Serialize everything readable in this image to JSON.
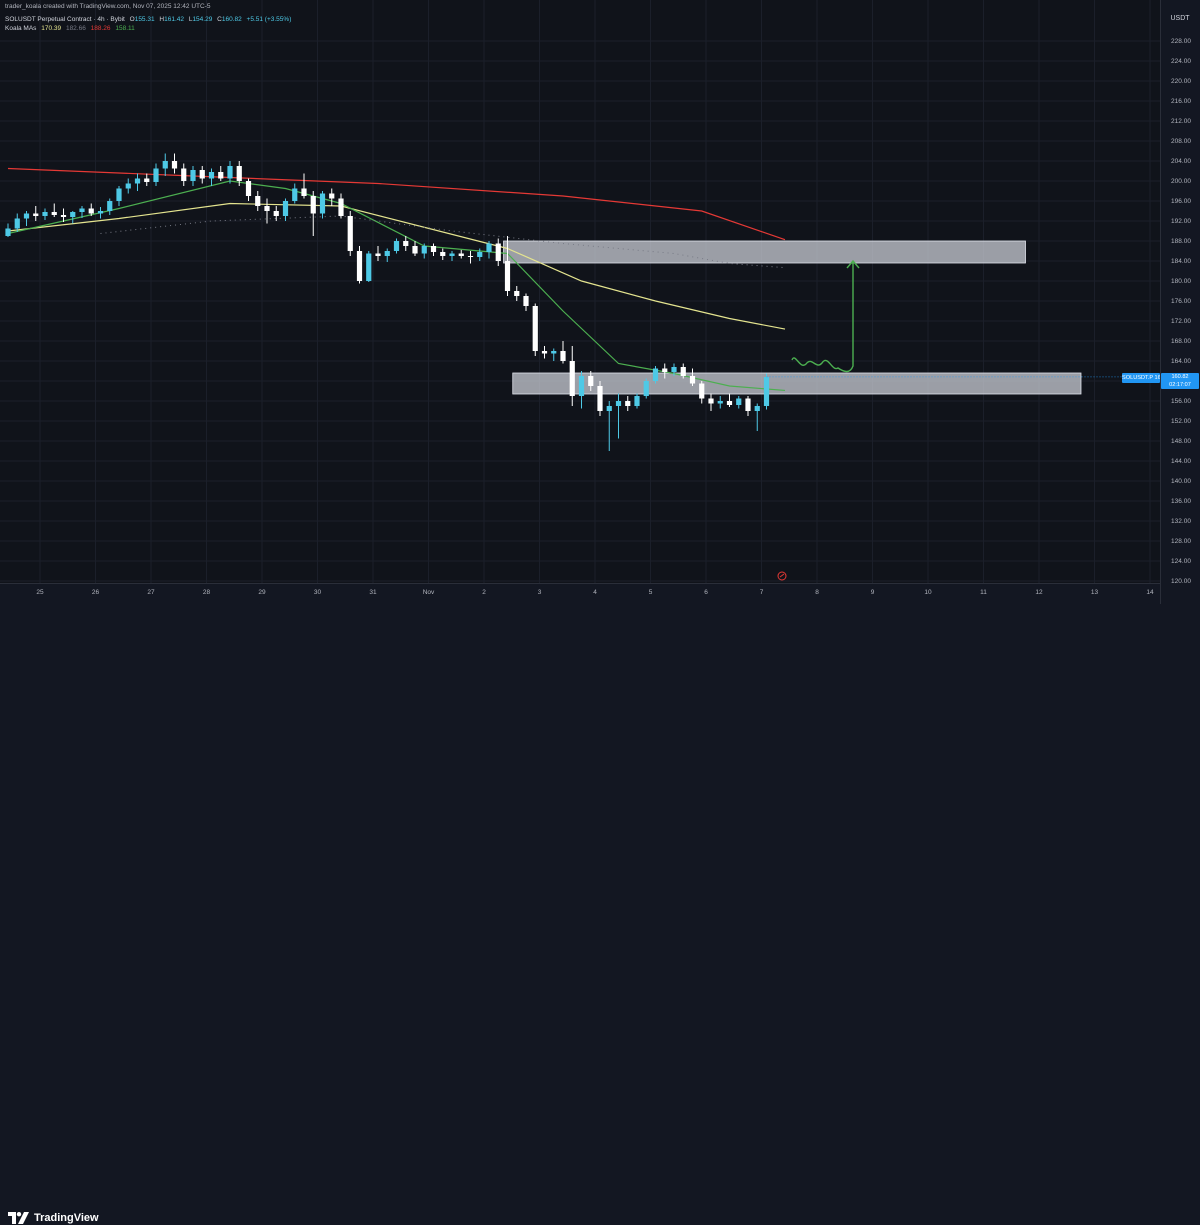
{
  "header": {
    "credit": "trader_koala created with TradingView.com, Nov 07, 2025 12:42 UTC-5",
    "symbol_line": "SOLUSDT Perpetual Contract · 4h · Bybit",
    "ohlc": {
      "o_label": "O",
      "o": "155.31",
      "h_label": "H",
      "h": "161.42",
      "l_label": "L",
      "l": "154.29",
      "c_label": "C",
      "c": "160.82",
      "change": "+5.51 (+3.55%)"
    },
    "ma_label": "Koala MAs",
    "ma_values": [
      "170.39",
      "182.66",
      "188.26",
      "158.11"
    ],
    "ma_colors": [
      "#e4e48f",
      "#787b86",
      "#e53935",
      "#4caf50"
    ]
  },
  "price_axis": {
    "currency": "USDT",
    "ticks": [
      "228.00",
      "224.00",
      "220.00",
      "216.00",
      "212.00",
      "208.00",
      "204.00",
      "200.00",
      "196.00",
      "192.00",
      "188.00",
      "184.00",
      "180.00",
      "176.00",
      "172.00",
      "168.00",
      "164.00",
      "160.00",
      "156.00",
      "152.00",
      "148.00",
      "144.00",
      "140.00",
      "136.00",
      "132.00",
      "128.00",
      "124.00",
      "120.00"
    ],
    "last_symbol": "SOLUSDT.P",
    "last_price": "160.82",
    "countdown": "02:17:07",
    "last_color": "#2196f3"
  },
  "time_axis": {
    "ticks": [
      "25",
      "26",
      "27",
      "28",
      "29",
      "30",
      "31",
      "Nov",
      "2",
      "3",
      "4",
      "5",
      "6",
      "7",
      "8",
      "9",
      "10",
      "11",
      "12",
      "13",
      "14"
    ]
  },
  "footer": {
    "brand": "TradingView"
  },
  "chart_data": {
    "type": "candlestick",
    "timeframe": "4h",
    "ylim": [
      118,
      232
    ],
    "x_start_day": "Oct 24",
    "candles_per_day": 6,
    "up_color": "#4ec9e6",
    "down_color": "#ffffff",
    "candles": [
      [
        189.0,
        191.5,
        188.8,
        190.5
      ],
      [
        190.5,
        193.5,
        189.8,
        192.5
      ],
      [
        192.5,
        194.0,
        191.0,
        193.5
      ],
      [
        193.5,
        195.0,
        192.0,
        193.0
      ],
      [
        193.0,
        194.5,
        192.2,
        193.8
      ],
      [
        193.8,
        195.5,
        192.8,
        193.2
      ],
      [
        193.2,
        194.5,
        191.8,
        192.8
      ],
      [
        192.8,
        194.0,
        191.5,
        193.8
      ],
      [
        193.8,
        195.0,
        192.6,
        194.5
      ],
      [
        194.5,
        195.5,
        193.0,
        193.5
      ],
      [
        193.5,
        194.8,
        192.5,
        194.0
      ],
      [
        194.0,
        196.5,
        193.2,
        196.0
      ],
      [
        196.0,
        199.0,
        195.0,
        198.5
      ],
      [
        198.5,
        200.5,
        197.5,
        199.5
      ],
      [
        199.5,
        201.5,
        198.0,
        200.5
      ],
      [
        200.5,
        201.5,
        199.0,
        199.8
      ],
      [
        199.8,
        203.5,
        199.0,
        202.5
      ],
      [
        202.5,
        205.5,
        201.0,
        204.0
      ],
      [
        204.0,
        205.5,
        201.5,
        202.5
      ],
      [
        202.5,
        203.5,
        199.0,
        200.0
      ],
      [
        200.0,
        203.0,
        199.0,
        202.2
      ],
      [
        202.2,
        203.0,
        199.5,
        200.5
      ],
      [
        200.5,
        202.5,
        199.0,
        201.8
      ],
      [
        201.8,
        203.0,
        200.0,
        200.5
      ],
      [
        200.5,
        204.0,
        199.5,
        203.0
      ],
      [
        203.0,
        204.0,
        199.0,
        200.0
      ],
      [
        200.0,
        200.5,
        196.0,
        197.0
      ],
      [
        197.0,
        198.0,
        194.0,
        195.0
      ],
      [
        195.0,
        196.5,
        191.5,
        194.0
      ],
      [
        194.0,
        195.0,
        192.0,
        193.0
      ],
      [
        193.0,
        196.5,
        192.0,
        196.0
      ],
      [
        196.0,
        199.5,
        195.5,
        198.5
      ],
      [
        198.5,
        201.5,
        196.5,
        197.0
      ],
      [
        197.0,
        198.0,
        189.0,
        193.5
      ],
      [
        193.5,
        198.0,
        192.5,
        197.5
      ],
      [
        197.5,
        198.5,
        195.0,
        196.5
      ],
      [
        196.5,
        197.5,
        192.5,
        193.0
      ],
      [
        193.0,
        194.0,
        185.0,
        186.0
      ],
      [
        186.0,
        187.0,
        179.5,
        180.0
      ],
      [
        180.0,
        186.0,
        179.8,
        185.5
      ],
      [
        185.5,
        187.0,
        184.0,
        185.0
      ],
      [
        185.0,
        186.5,
        183.8,
        186.0
      ],
      [
        186.0,
        188.5,
        185.5,
        188.0
      ],
      [
        188.0,
        189.0,
        186.0,
        187.0
      ],
      [
        187.0,
        188.0,
        185.0,
        185.5
      ],
      [
        185.5,
        187.5,
        184.5,
        187.0
      ],
      [
        187.0,
        187.5,
        185.0,
        185.8
      ],
      [
        185.8,
        186.5,
        184.2,
        185.0
      ],
      [
        185.0,
        186.0,
        184.0,
        185.5
      ],
      [
        185.5,
        186.2,
        184.5,
        185.0
      ],
      [
        185.0,
        186.0,
        183.5,
        184.8
      ],
      [
        184.8,
        186.5,
        184.0,
        185.8
      ],
      [
        185.8,
        188.0,
        184.5,
        187.5
      ],
      [
        187.5,
        188.5,
        183.0,
        184.0
      ],
      [
        184.0,
        189.0,
        177.0,
        178.0
      ],
      [
        178.0,
        179.0,
        176.0,
        177.0
      ],
      [
        177.0,
        177.5,
        174.0,
        175.0
      ],
      [
        175.0,
        175.5,
        165.0,
        166.0
      ],
      [
        166.0,
        167.0,
        164.5,
        165.5
      ],
      [
        165.5,
        166.5,
        164.0,
        166.0
      ],
      [
        166.0,
        168.0,
        163.5,
        164.0
      ],
      [
        164.0,
        167.0,
        155.0,
        157.0
      ],
      [
        157.0,
        162.0,
        154.5,
        161.0
      ],
      [
        161.0,
        162.0,
        158.0,
        159.0
      ],
      [
        159.0,
        160.0,
        153.0,
        154.0
      ],
      [
        154.0,
        156.0,
        146.0,
        155.0
      ],
      [
        155.0,
        157.5,
        148.5,
        156.0
      ],
      [
        156.0,
        157.0,
        154.0,
        155.0
      ],
      [
        155.0,
        157.5,
        154.5,
        157.0
      ],
      [
        157.0,
        160.5,
        156.5,
        160.0
      ],
      [
        160.0,
        163.0,
        159.5,
        162.5
      ],
      [
        162.5,
        163.5,
        160.5,
        161.8
      ],
      [
        161.8,
        163.5,
        161.0,
        162.8
      ],
      [
        162.8,
        163.5,
        160.5,
        161.0
      ],
      [
        161.0,
        162.5,
        159.0,
        159.5
      ],
      [
        159.5,
        160.0,
        155.5,
        156.5
      ],
      [
        156.5,
        157.5,
        154.0,
        155.5
      ],
      [
        155.5,
        157.0,
        154.5,
        156.0
      ],
      [
        156.0,
        157.5,
        154.8,
        155.2
      ],
      [
        155.2,
        157.0,
        154.5,
        156.5
      ],
      [
        156.5,
        157.0,
        153.0,
        154.0
      ],
      [
        154.0,
        155.5,
        150.0,
        155.0
      ],
      [
        155.0,
        161.5,
        154.3,
        160.8
      ]
    ],
    "moving_averages": [
      {
        "color": "#e53935",
        "points": [
          [
            0,
            202.5
          ],
          [
            20,
            201.0
          ],
          [
            40,
            199.5
          ],
          [
            60,
            197.0
          ],
          [
            75,
            194.0
          ],
          [
            84,
            188.26
          ]
        ]
      },
      {
        "color": "#e4e48f",
        "points": [
          [
            0,
            190.0
          ],
          [
            12,
            192.5
          ],
          [
            24,
            195.5
          ],
          [
            36,
            195.0
          ],
          [
            54,
            186.5
          ],
          [
            62,
            180.0
          ],
          [
            70,
            176.0
          ],
          [
            78,
            172.5
          ],
          [
            84,
            170.39
          ]
        ]
      },
      {
        "color": "#4caf50",
        "points": [
          [
            0,
            189.5
          ],
          [
            12,
            194.5
          ],
          [
            24,
            200.0
          ],
          [
            30,
            198.5
          ],
          [
            36,
            195.5
          ],
          [
            45,
            187.0
          ],
          [
            54,
            185.5
          ],
          [
            60,
            174.0
          ],
          [
            66,
            163.5
          ],
          [
            72,
            161.5
          ],
          [
            78,
            159.0
          ],
          [
            84,
            158.11
          ]
        ]
      },
      {
        "color": "#787b86",
        "points": [
          [
            10,
            189.5
          ],
          [
            22,
            192.0
          ],
          [
            36,
            193.0
          ],
          [
            48,
            190.0
          ],
          [
            60,
            187.5
          ],
          [
            72,
            185.5
          ],
          [
            78,
            183.5
          ],
          [
            84,
            182.66
          ]
        ],
        "dashed": true
      }
    ],
    "zones": [
      {
        "y_top": 188.0,
        "y_bottom": 183.6,
        "x_start": 54,
        "x_end": 110
      },
      {
        "y_top": 161.6,
        "y_bottom": 157.4,
        "x_start": 55,
        "x_end": 116
      }
    ],
    "projection": {
      "color": "#4caf50",
      "from_price": 163.0,
      "to_price": 184.0
    }
  }
}
